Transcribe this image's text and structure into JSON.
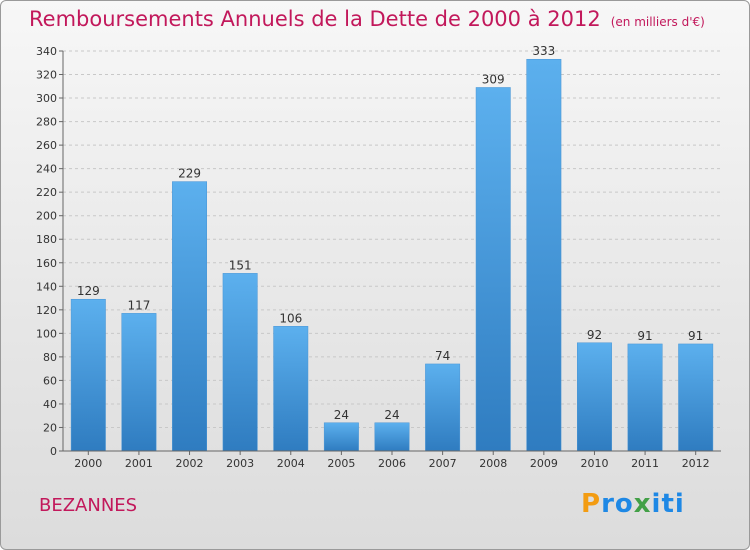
{
  "header": {
    "title": "Remboursements Annuels de la Dette de 2000 à 2012",
    "unit": "(en milliers d'€)"
  },
  "footer": {
    "city": "BEZANNES",
    "logo": "Proxiti"
  },
  "colors": {
    "title": "#c2185b",
    "bar_top": "#5cb0ee",
    "bar_bottom": "#2f7cc0",
    "logo_p": "#f39c12",
    "logo_ro": "#1e88e5",
    "logo_x": "#43a047"
  },
  "chart_data": {
    "type": "bar",
    "title": "Remboursements Annuels de la Dette de 2000 à 2012",
    "xlabel": "",
    "ylabel": "",
    "categories": [
      "2000",
      "2001",
      "2002",
      "2003",
      "2004",
      "2005",
      "2006",
      "2007",
      "2008",
      "2009",
      "2010",
      "2011",
      "2012"
    ],
    "values": [
      129,
      117,
      229,
      151,
      106,
      24,
      24,
      74,
      309,
      333,
      92,
      91,
      91
    ],
    "ylim": [
      0,
      340
    ],
    "yticks": [
      0,
      20,
      40,
      60,
      80,
      100,
      120,
      140,
      160,
      180,
      200,
      220,
      240,
      260,
      280,
      300,
      320,
      340
    ],
    "grid": "horizontal"
  }
}
